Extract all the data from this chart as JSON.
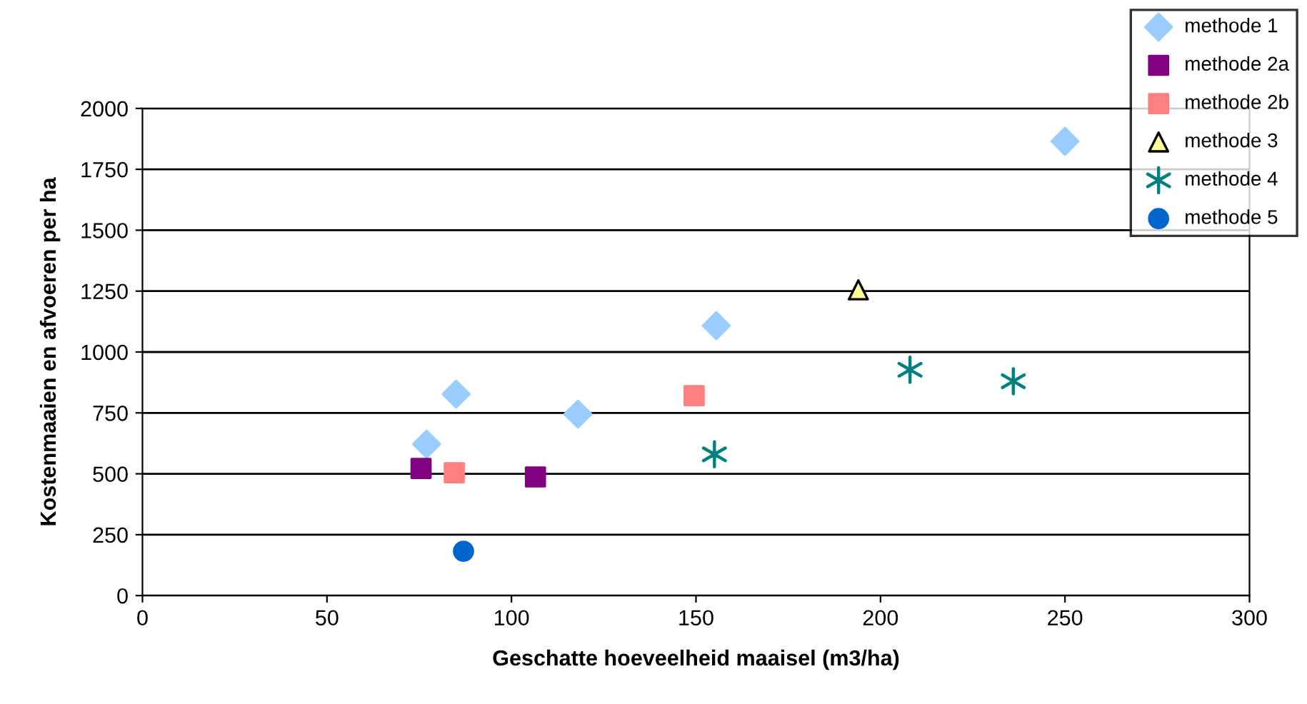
{
  "chart_data": {
    "type": "scatter",
    "xlabel": "Geschatte hoeveelheid maaisel (m3/ha)",
    "ylabel": "Kostenmaaien en afvoeren per ha",
    "xlim": [
      0,
      300
    ],
    "xticks": [
      0,
      50,
      100,
      150,
      200,
      250,
      300
    ],
    "ylim": [
      0,
      2000
    ],
    "yticks": [
      0,
      250,
      500,
      750,
      1000,
      1250,
      1500,
      1750,
      2000
    ],
    "grid": "y",
    "legend": "top right",
    "series": [
      {
        "name": "methode 1",
        "color": "#99ccff",
        "marker": "diamond",
        "x": [
          77,
          85,
          118,
          155.5,
          250
        ],
        "values": [
          622,
          827,
          745,
          1108,
          1865
        ]
      },
      {
        "name": "methode 2a",
        "color": "#800080",
        "marker": "square",
        "x": [
          75.5,
          106.5
        ],
        "values": [
          522,
          487
        ]
      },
      {
        "name": "methode 2b",
        "color": "#ff8080",
        "marker": "square",
        "x": [
          84.5,
          149.5
        ],
        "values": [
          504,
          821
        ]
      },
      {
        "name": "methode 3",
        "color": "#ffff99",
        "marker": "triangle",
        "x": [
          194
        ],
        "values": [
          1255
        ]
      },
      {
        "name": "methode 4",
        "color": "#008080",
        "marker": "cross",
        "x": [
          155,
          208,
          236
        ],
        "values": [
          580,
          927,
          880
        ]
      },
      {
        "name": "methode 5",
        "color": "#0066cc",
        "marker": "circle",
        "x": [
          87
        ],
        "values": [
          182
        ]
      }
    ]
  }
}
